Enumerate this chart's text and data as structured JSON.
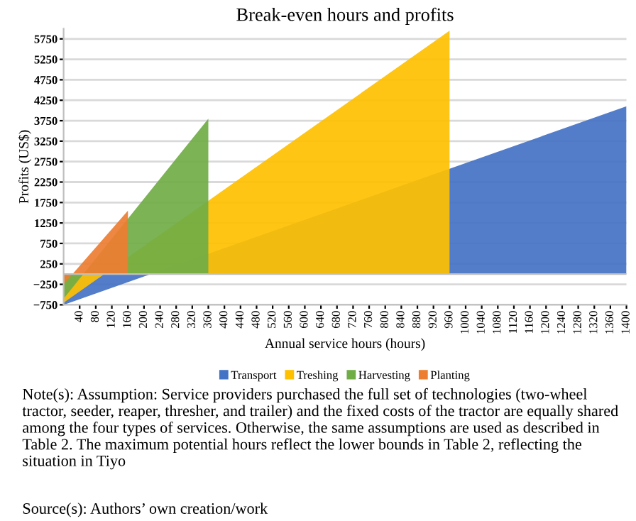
{
  "chart_data": {
    "type": "area",
    "title": "Break-even hours and profits",
    "xlabel": "Annual service hours (hours)",
    "ylabel": "Profits (US$)",
    "series": [
      {
        "name": "Transport",
        "color": "#4472c4",
        "x": [
          0,
          1400
        ],
        "values": [
          -750,
          4100
        ]
      },
      {
        "name": "Treshing",
        "color": "#ffc000",
        "x": [
          0,
          960
        ],
        "values": [
          -700,
          5950
        ]
      },
      {
        "name": "Harvesting",
        "color": "#70ad47",
        "x": [
          0,
          360
        ],
        "values": [
          -600,
          3800
        ]
      },
      {
        "name": "Planting",
        "color": "#ed7d31",
        "x": [
          0,
          160
        ],
        "values": [
          -250,
          1550
        ]
      }
    ],
    "xlim": [
      0,
      1400
    ],
    "xticks": [
      40,
      80,
      120,
      160,
      200,
      240,
      280,
      320,
      360,
      400,
      440,
      480,
      520,
      560,
      600,
      640,
      680,
      720,
      760,
      800,
      840,
      880,
      920,
      960,
      1000,
      1040,
      1080,
      1120,
      1160,
      1200,
      1240,
      1280,
      1320,
      1360,
      1400
    ],
    "ylim": [
      -750,
      6000
    ],
    "yticks": [
      -750,
      -250,
      250,
      750,
      1250,
      1750,
      2250,
      2750,
      3250,
      3750,
      4250,
      4750,
      5250,
      5750
    ],
    "grid": "y",
    "legend": "bottom",
    "annotations": [
      "Note(s): Assumption: Service providers purchased the full set of technologies (two-wheel tractor, seeder, reaper, thresher, and trailer) and the fixed costs of the tractor are equally shared among the four types of services. Otherwise, the same assumptions are used as described in Table 2. The maximum potential hours reflect the lower bounds in Table 2, reflecting the situation in Tiyo",
      "Source(s): Authors’ own creation/work"
    ]
  }
}
